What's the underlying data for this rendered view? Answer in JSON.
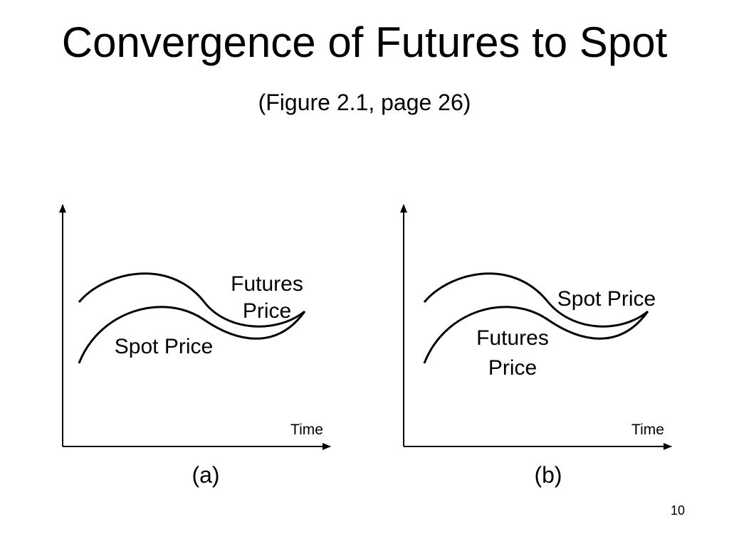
{
  "slide": {
    "title": "Convergence of Futures to Spot",
    "subtitle": "(Figure  2.1, page 26)",
    "page_number": "10"
  },
  "panels": [
    {
      "caption": "(a)",
      "axis_label": "Time",
      "upper_curve": {
        "label_line1": "Futures",
        "label_line2": "Price"
      },
      "lower_curve": {
        "label_line1": "Spot Price"
      }
    },
    {
      "caption": "(b)",
      "axis_label": "Time",
      "upper_curve": {
        "label_line1": "Spot Price"
      },
      "lower_curve": {
        "label_line1": "Futures",
        "label_line2": "Price"
      }
    }
  ],
  "colors": {
    "line": "#000000",
    "background": "#ffffff"
  }
}
